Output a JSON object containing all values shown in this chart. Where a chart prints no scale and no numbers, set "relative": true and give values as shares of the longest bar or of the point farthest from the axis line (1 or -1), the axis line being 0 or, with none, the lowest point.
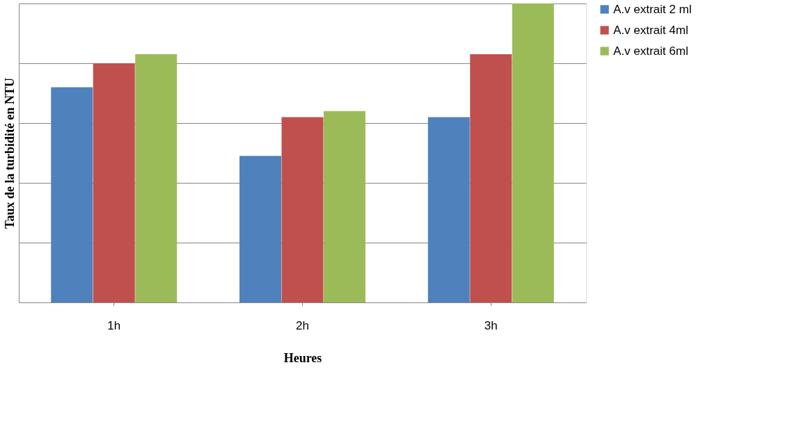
{
  "chart_data": {
    "type": "bar",
    "relative": true,
    "xlabel": "Heures",
    "ylabel": "Taux de la turbidité en NTU",
    "categories": [
      "1h",
      "2h",
      "3h"
    ],
    "series": [
      {
        "name": "A.v extrait 2 ml",
        "color": "#4f81bd",
        "values": [
          0.72,
          0.49,
          0.62
        ]
      },
      {
        "name": "A.v extrait 4ml",
        "color": "#c0504d",
        "values": [
          0.8,
          0.62,
          0.83
        ]
      },
      {
        "name": "A.v extrait 6ml",
        "color": "#9bbb59",
        "values": [
          0.83,
          0.64,
          1
        ]
      }
    ],
    "grid": "y",
    "legend": "right"
  }
}
